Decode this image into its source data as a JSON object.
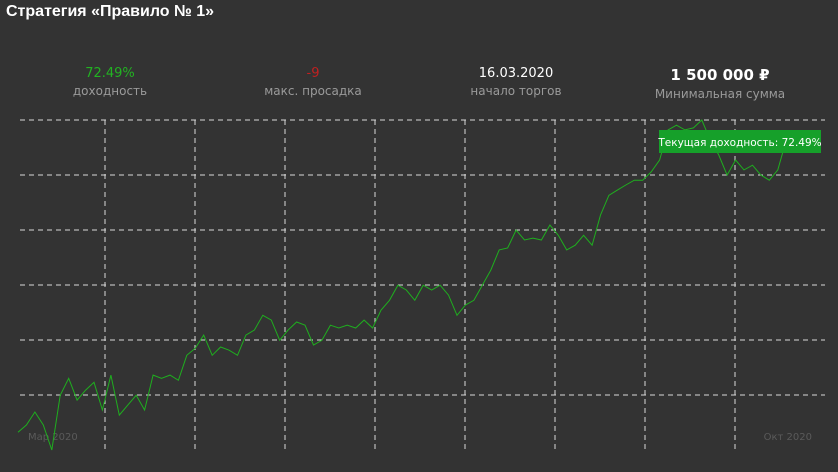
{
  "header": {
    "title": "Стратегия  «Правило № 1»"
  },
  "stats": [
    {
      "value": "72.49%",
      "label": "доходность"
    },
    {
      "value": "-9",
      "label": "макс. просадка"
    },
    {
      "value": "16.03.2020",
      "label": "начало торгов"
    },
    {
      "value": "1 500 000 ₽",
      "label": "Минимальная сумма"
    }
  ],
  "chart_data": {
    "type": "line",
    "color": "#1fae1f",
    "x_start_label": "Мар 2020",
    "x_end_label": "Окт 2020",
    "tooltip": "Текущая доходность: 72.49%",
    "ylim": [
      -4.5,
      78.8
    ],
    "values": [
      0,
      1.8,
      5.1,
      1.8,
      -4.5,
      9.3,
      13.6,
      8.1,
      10.6,
      12.6,
      5.6,
      14.4,
      4.3,
      6.8,
      9.3,
      5.6,
      14.4,
      13.6,
      14.4,
      13.1,
      19.4,
      21.2,
      24.5,
      19.4,
      21.5,
      20.7,
      19.4,
      24.5,
      25.8,
      29.5,
      28.3,
      23.2,
      25.8,
      27.8,
      27.0,
      22.0,
      23.2,
      27.0,
      26.3,
      27.0,
      26.3,
      28.3,
      26.3,
      30.8,
      33.3,
      37.1,
      35.9,
      33.3,
      37.1,
      35.9,
      37.1,
      34.6,
      29.5,
      32.1,
      33.3,
      37.1,
      40.9,
      46.0,
      46.5,
      51.0,
      48.5,
      49.0,
      48.5,
      52.3,
      49.7,
      46.0,
      47.2,
      49.7,
      47.2,
      54.8,
      59.8,
      61.1,
      62.4,
      63.6,
      63.6,
      65.7,
      68.7,
      76.3,
      77.5,
      76.3,
      76.8,
      78.8,
      73.7,
      70.0,
      64.9,
      68.7,
      66.2,
      67.4,
      64.9,
      63.6,
      66.2,
      73.7,
      71.2,
      71.2,
      72.5,
      72.49
    ]
  }
}
